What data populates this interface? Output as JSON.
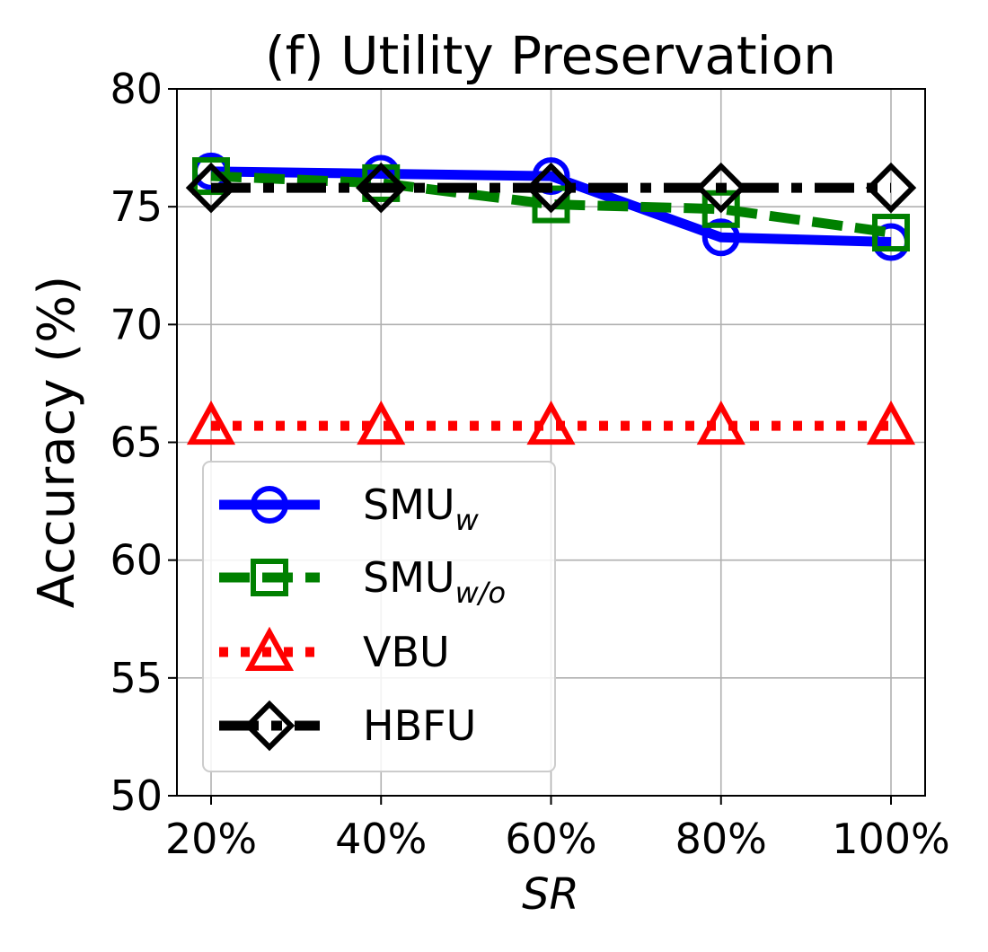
{
  "chart_data": {
    "type": "line",
    "title": "(f) Utility Preservation",
    "xlabel": "SR",
    "ylabel": "Accuracy (%)",
    "categories": [
      "20%",
      "40%",
      "60%",
      "80%",
      "100%"
    ],
    "ylim": [
      50,
      80
    ],
    "yticks": [
      "50",
      "55",
      "60",
      "65",
      "70",
      "75",
      "80"
    ],
    "grid": true,
    "legend_position": "lower-left",
    "series": [
      {
        "name": "SMU",
        "name_sub": "w",
        "color": "#0000ff",
        "marker": "circle",
        "linestyle": "solid",
        "values": [
          76.5,
          76.4,
          76.3,
          73.7,
          73.5
        ]
      },
      {
        "name": "SMU",
        "name_sub": "w/o",
        "color": "#008000",
        "marker": "square",
        "linestyle": "dashed",
        "values": [
          76.3,
          76.0,
          75.1,
          74.9,
          73.9
        ]
      },
      {
        "name": "VBU",
        "name_sub": "",
        "color": "#ff0000",
        "marker": "triangle",
        "linestyle": "dotted",
        "values": [
          65.7,
          65.7,
          65.7,
          65.7,
          65.7
        ]
      },
      {
        "name": "HBFU",
        "name_sub": "",
        "color": "#000000",
        "marker": "diamond",
        "linestyle": "dashdot",
        "values": [
          75.8,
          75.8,
          75.8,
          75.8,
          75.8
        ]
      }
    ]
  }
}
